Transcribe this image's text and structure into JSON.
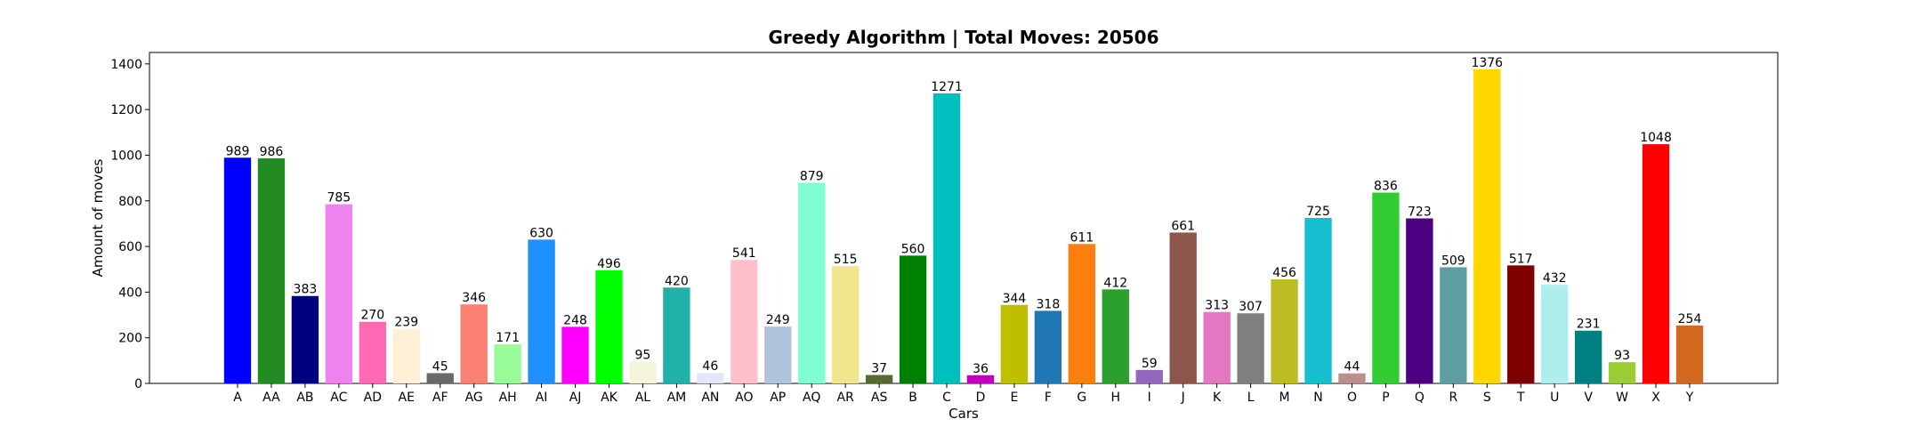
{
  "chart_data": {
    "type": "bar",
    "title": "Greedy Algorithm | Total Moves: 20506",
    "xlabel": "Cars",
    "ylabel": "Amount of moves",
    "ylim": [
      0,
      1450
    ],
    "yticks": [
      0,
      200,
      400,
      600,
      800,
      1000,
      1200,
      1400
    ],
    "grid": false,
    "categories": [
      "A",
      "AA",
      "AB",
      "AC",
      "AD",
      "AE",
      "AF",
      "AG",
      "AH",
      "AI",
      "AJ",
      "AK",
      "AL",
      "AM",
      "AN",
      "AO",
      "AP",
      "AQ",
      "AR",
      "AS",
      "B",
      "C",
      "D",
      "E",
      "F",
      "G",
      "H",
      "I",
      "J",
      "K",
      "L",
      "M",
      "N",
      "O",
      "P",
      "Q",
      "R",
      "S",
      "T",
      "U",
      "V",
      "W",
      "X",
      "Y"
    ],
    "values": [
      989,
      986,
      383,
      785,
      270,
      239,
      45,
      346,
      171,
      630,
      248,
      496,
      95,
      420,
      46,
      541,
      249,
      879,
      515,
      37,
      560,
      1271,
      36,
      344,
      318,
      611,
      412,
      59,
      661,
      313,
      307,
      456,
      725,
      44,
      836,
      723,
      509,
      1376,
      517,
      432,
      231,
      93,
      1048,
      254
    ],
    "colors": [
      "#0000ff",
      "#228b22",
      "#000080",
      "#ee82ee",
      "#ff69b4",
      "#fff0d5",
      "#696969",
      "#fa8072",
      "#98fb98",
      "#1e90ff",
      "#ff00ff",
      "#00ff00",
      "#f5f5dc",
      "#20b2aa",
      "#e6e6fa",
      "#ffc0cb",
      "#b0c4de",
      "#7fffd4",
      "#f0e68c",
      "#556b2f",
      "#008000",
      "#00bfbf",
      "#bf00bf",
      "#bfbf00",
      "#1f77b4",
      "#ff7f0e",
      "#2ca02c",
      "#9467bd",
      "#8c564b",
      "#e377c2",
      "#7f7f7f",
      "#bcbd22",
      "#17becf",
      "#bc8f8f",
      "#32cd32",
      "#4b0082",
      "#5f9ea0",
      "#ffd700",
      "#800000",
      "#afeeee",
      "#008080",
      "#9acd32",
      "#ff0000",
      "#d2691e"
    ]
  }
}
